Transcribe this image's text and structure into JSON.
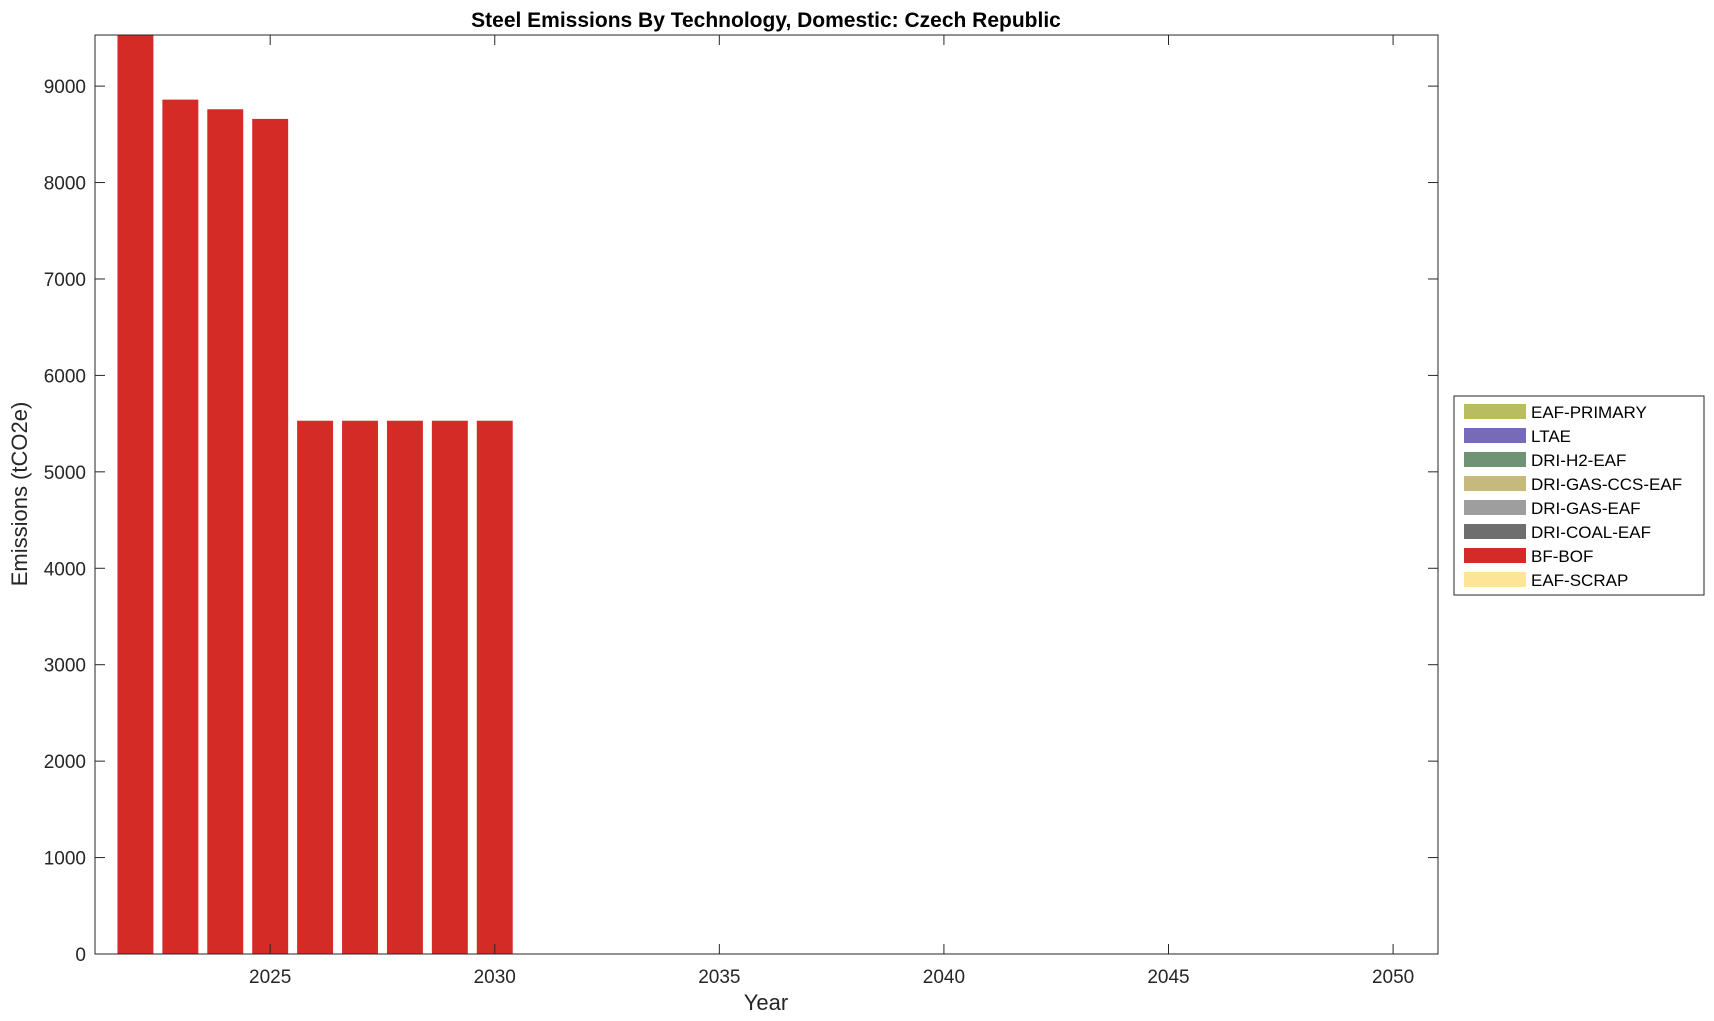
{
  "chart_data": {
    "type": "bar",
    "stacked": true,
    "title": "Steel Emissions By Technology, Domestic: Czech Republic",
    "xlabel": "Year",
    "ylabel": "Emissions (tCO2e)",
    "xlim": [
      2021.1,
      2051
    ],
    "ylim": [
      0,
      9530
    ],
    "x_ticks": [
      2025,
      2030,
      2035,
      2040,
      2045,
      2050
    ],
    "y_ticks": [
      0,
      1000,
      2000,
      3000,
      4000,
      5000,
      6000,
      7000,
      8000,
      9000
    ],
    "legend_position": "right",
    "grid": false,
    "x": [
      2022,
      2023,
      2024,
      2025,
      2026,
      2027,
      2028,
      2029,
      2030
    ],
    "series": [
      {
        "name": "EAF-PRIMARY",
        "color": "#b8bd62",
        "values": [
          0,
          0,
          0,
          0,
          0,
          0,
          0,
          0,
          0
        ]
      },
      {
        "name": "LTAE",
        "color": "#776bb9",
        "values": [
          0,
          0,
          0,
          0,
          0,
          0,
          0,
          0,
          0
        ]
      },
      {
        "name": "DRI-H2-EAF",
        "color": "#6f9373",
        "values": [
          0,
          0,
          0,
          0,
          0,
          0,
          0,
          0,
          0
        ]
      },
      {
        "name": "DRI-GAS-CCS-EAF",
        "color": "#c5ba7c",
        "values": [
          0,
          0,
          0,
          0,
          0,
          0,
          0,
          0,
          0
        ]
      },
      {
        "name": "DRI-GAS-EAF",
        "color": "#9e9e9e",
        "values": [
          0,
          0,
          0,
          0,
          0,
          0,
          0,
          0,
          0
        ]
      },
      {
        "name": "DRI-COAL-EAF",
        "color": "#6e6e6e",
        "values": [
          0,
          0,
          0,
          0,
          0,
          0,
          0,
          0,
          0
        ]
      },
      {
        "name": "BF-BOF",
        "color": "#d42b27",
        "values": [
          9530,
          8860,
          8760,
          8660,
          5530,
          5530,
          5530,
          5530,
          5530
        ]
      },
      {
        "name": "EAF-SCRAP",
        "color": "#fce597",
        "values": [
          0,
          0,
          0,
          0,
          0,
          0,
          0,
          0,
          0
        ]
      }
    ]
  }
}
